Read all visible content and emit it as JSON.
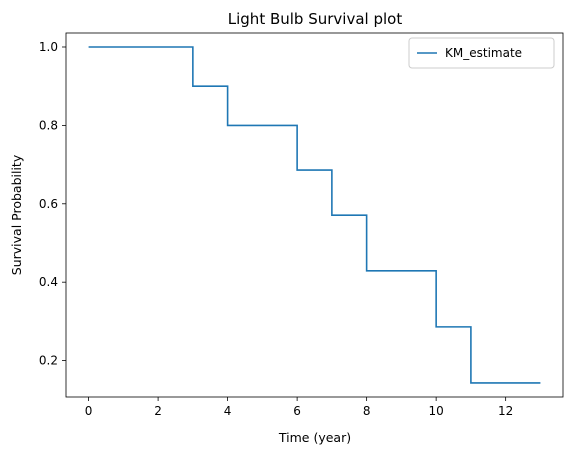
{
  "chart_data": {
    "type": "line",
    "title": "Light Bulb Survival plot",
    "xlabel": "Time (year)",
    "ylabel": "Survival Probability",
    "step": "post",
    "x_ticks": [
      "0",
      "2",
      "4",
      "6",
      "8",
      "10",
      "12"
    ],
    "y_ticks": [
      "0.2",
      "0.4",
      "0.6",
      "0.8",
      "1.0"
    ],
    "xlim": [
      -0.65,
      13.65
    ],
    "ylim": [
      0.1071,
      1.0357
    ],
    "legend": "top-right",
    "grid": false,
    "series": [
      {
        "name": "KM_estimate",
        "color": "#1f77b4",
        "x": [
          0,
          3,
          4,
          6,
          7,
          8,
          10,
          11,
          13
        ],
        "y": [
          1.0,
          0.9,
          0.8,
          0.686,
          0.571,
          0.429,
          0.286,
          0.143,
          0.143
        ]
      }
    ]
  }
}
